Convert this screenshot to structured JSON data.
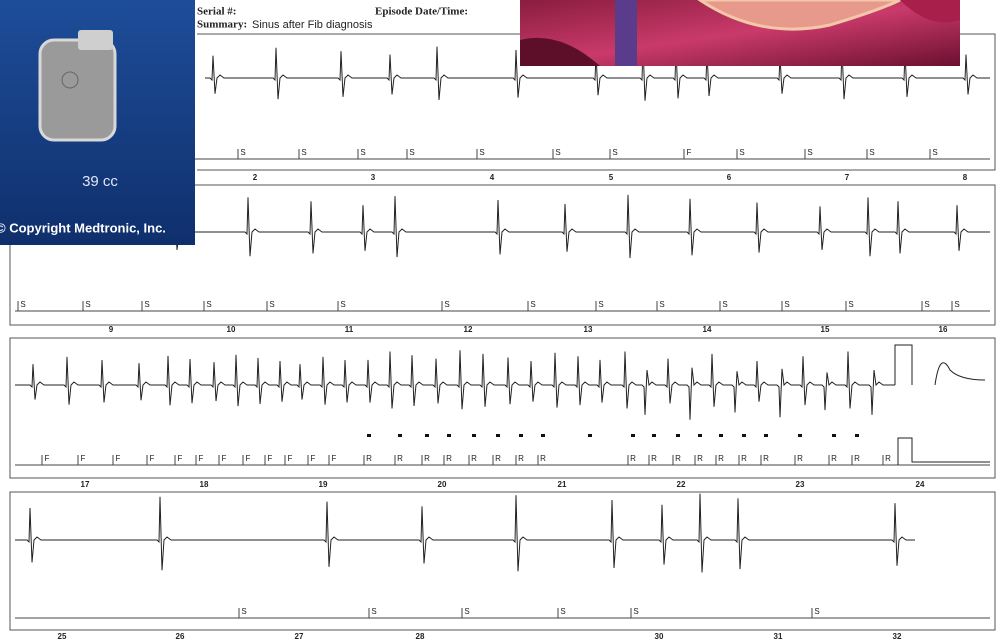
{
  "header": {
    "serial_label": "Serial #:",
    "episode_label": "Episode Date/Time:",
    "summary_label": "Summary:",
    "summary_text": "Sinus after Fib diagnosis"
  },
  "device": {
    "volume": "39 cc",
    "copyright": "© Copyright Medtronic, Inc."
  },
  "strips": [
    {
      "markers": [
        "S",
        "S",
        "S",
        "S",
        "S",
        "S",
        "S",
        "F",
        "S",
        "S",
        "S",
        "S"
      ],
      "times": [
        2,
        3,
        4,
        5,
        6,
        7,
        8
      ]
    },
    {
      "markers": [
        "S",
        "S",
        "S",
        "S",
        "S",
        "S",
        "S",
        "S",
        "S",
        "S",
        "S",
        "S",
        "S",
        "S",
        "S"
      ],
      "times": [
        9,
        10,
        11,
        12,
        13,
        14,
        15,
        16
      ]
    },
    {
      "markers": [
        "F",
        "F",
        "F",
        "F",
        "F",
        "F",
        "F",
        "F",
        "F",
        "F",
        "F",
        "F",
        "R",
        "R",
        "R",
        "R",
        "R",
        "R",
        "R",
        "R",
        "R",
        "R",
        "R",
        "R",
        "R",
        "R",
        "R",
        "R",
        "R",
        "R",
        "R"
      ],
      "times": [
        17,
        18,
        19,
        20,
        21,
        22,
        23,
        24
      ]
    },
    {
      "markers": [
        "S",
        "S",
        "S",
        "S",
        "S",
        "S"
      ],
      "times": [
        25,
        26,
        27,
        28,
        30,
        31,
        32
      ]
    }
  ]
}
